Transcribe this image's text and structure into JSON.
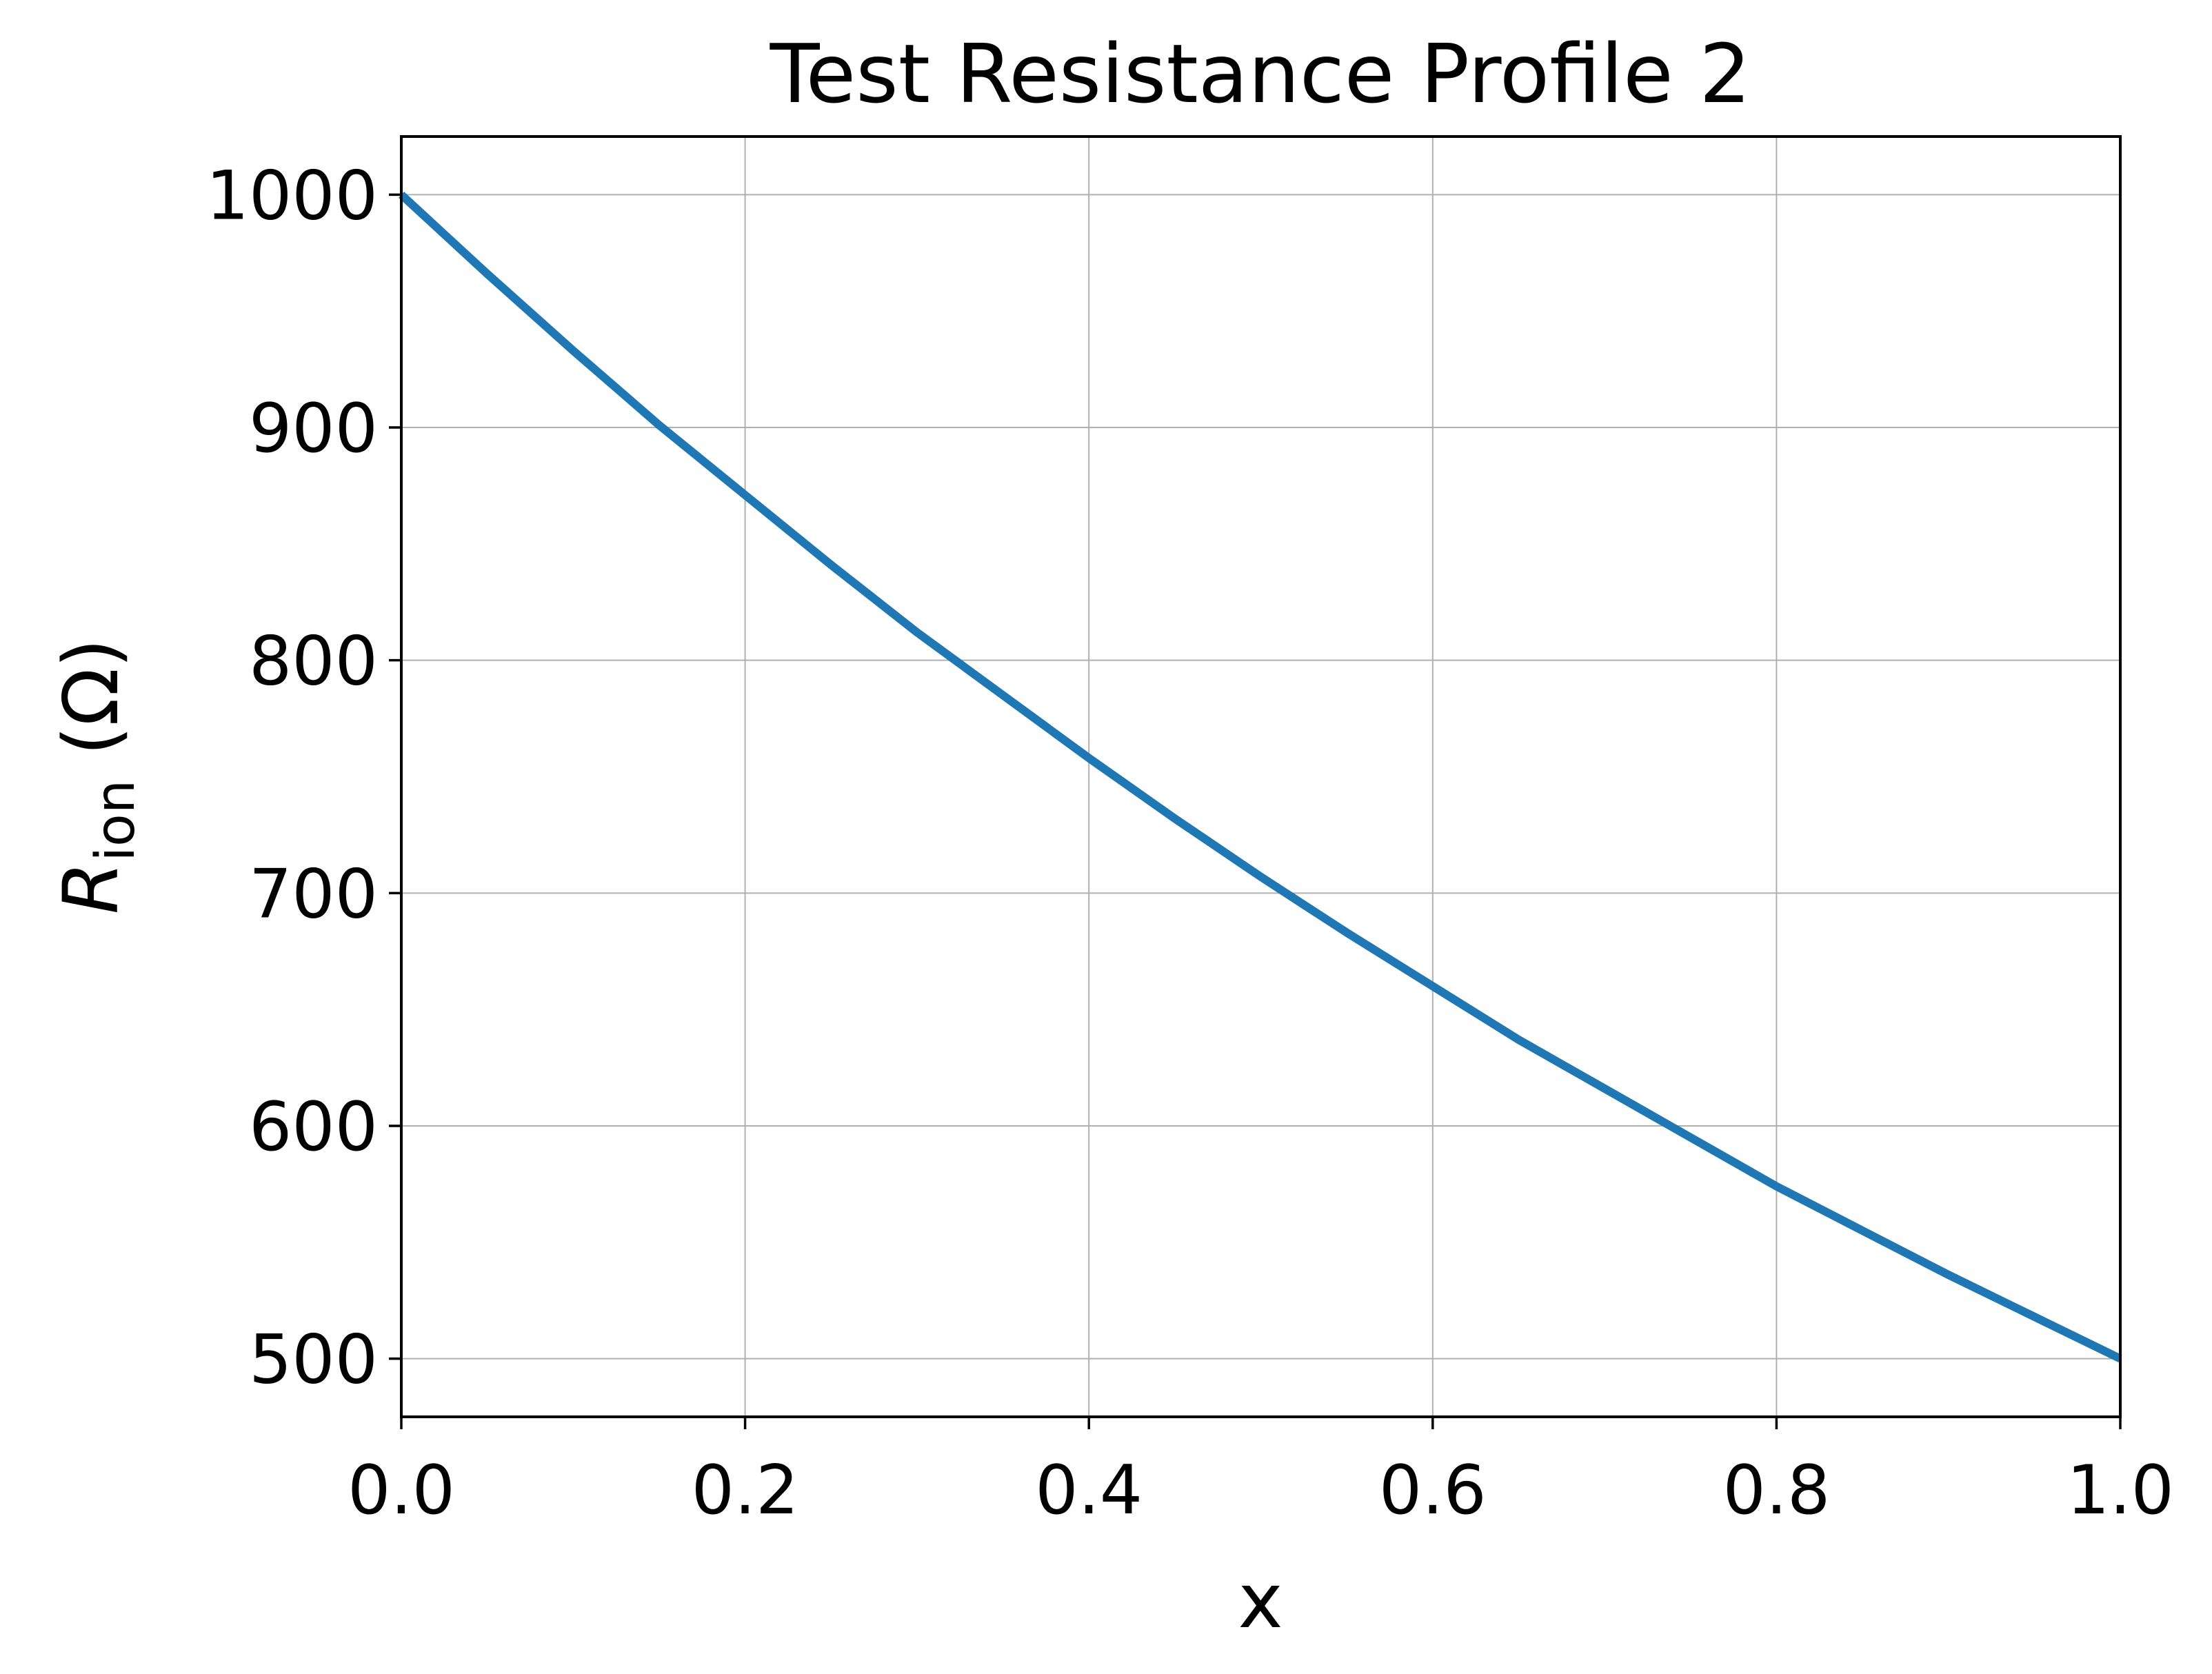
{
  "chart_data": {
    "type": "line",
    "title": "Test Resistance Profile 2",
    "xlabel": "x",
    "ylabel": {
      "main": "R",
      "subscript": "ion",
      "unit": " (Ω)"
    },
    "xlim": [
      0.0,
      1.0
    ],
    "ylim": [
      475,
      1025
    ],
    "xticks": [
      "0.0",
      "0.2",
      "0.4",
      "0.6",
      "0.8",
      "1.0"
    ],
    "yticks": [
      "500",
      "600",
      "700",
      "800",
      "900",
      "1000"
    ],
    "grid": true,
    "series": [
      {
        "color": "#1f77b4",
        "x": [
          0.0,
          0.05,
          0.1,
          0.15,
          0.2,
          0.25,
          0.3,
          0.35,
          0.4,
          0.45,
          0.5,
          0.55,
          0.6,
          0.65,
          0.7,
          0.75,
          0.8,
          0.85,
          0.9,
          0.95,
          1.0
        ],
        "y": [
          1000,
          966,
          933,
          901,
          871,
          841,
          812,
          785,
          758,
          732,
          707,
          683,
          660,
          637,
          616,
          595,
          574,
          555,
          536,
          518,
          500
        ]
      }
    ]
  }
}
